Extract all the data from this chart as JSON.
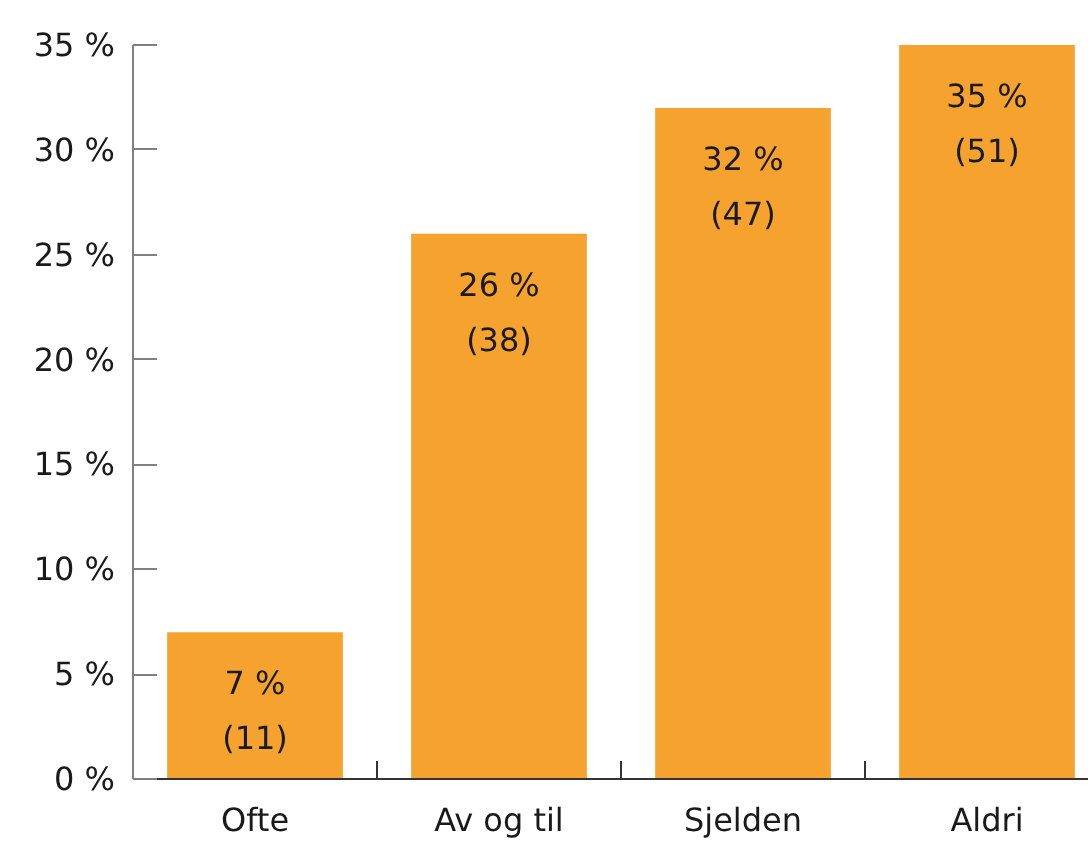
{
  "chart_data": {
    "type": "bar",
    "categories": [
      "Ofte",
      "Av og til",
      "Sjelden",
      "Aldri"
    ],
    "values": [
      7,
      26,
      32,
      35
    ],
    "color": "#f5a32e",
    "value_labels": [
      "7 %\n(11)",
      "26 %\n(38)",
      "32 %\n(47)",
      "35 %\n(51)"
    ],
    "ylim": [
      0,
      35
    ],
    "yticks": [
      {
        "value": 0,
        "label": "0 %"
      },
      {
        "value": 5,
        "label": "5 %"
      },
      {
        "value": 10,
        "label": "10 %"
      },
      {
        "value": 15,
        "label": "15 %"
      },
      {
        "value": 20,
        "label": "20 %"
      },
      {
        "value": 25,
        "label": "25 %"
      },
      {
        "value": 30,
        "label": "30 %"
      },
      {
        "value": 35,
        "label": "35 %"
      }
    ],
    "grid": false
  }
}
